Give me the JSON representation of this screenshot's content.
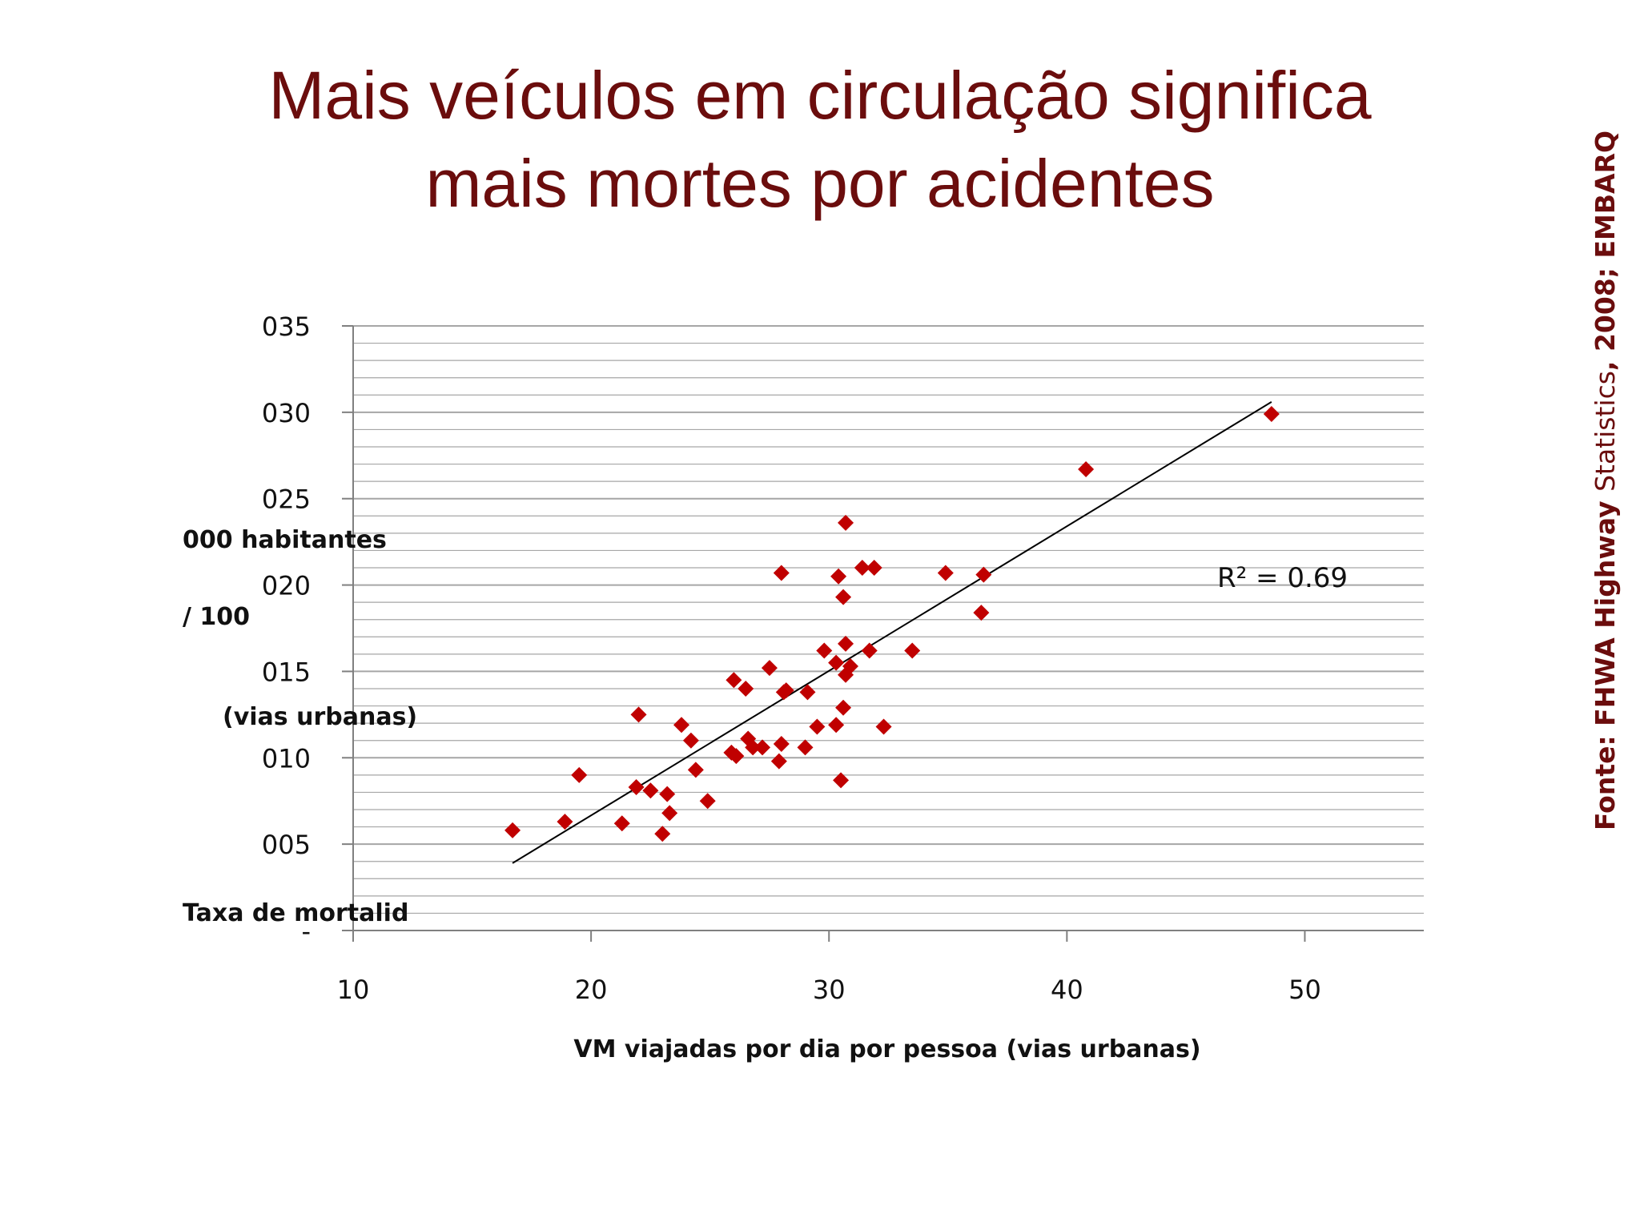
{
  "slide": {
    "title_line1": "Mais veículos em circulação significa",
    "title_line2": "mais mortes por acidentes",
    "source_bold": "Fonte: FHWA Highway ",
    "source_normal": "Statistics",
    "source_bold2": ", 2008; EMBARQ"
  },
  "colors": {
    "title": "#6b0d0d",
    "marker": "#c00000",
    "trendline": "#000000",
    "grid": "#a6a6a6"
  },
  "chart_data": {
    "type": "scatter",
    "title": "",
    "xlabel": "VM viajadas por dia por pessoa (vias urbanas)",
    "ylabel_lines": [
      "000 habitantes",
      "/ 100",
      "(vias urbanas)",
      "Taxa de mortalid"
    ],
    "xlim": [
      10,
      55
    ],
    "ylim": [
      0,
      35
    ],
    "x_ticks": [
      10,
      20,
      30,
      40,
      50
    ],
    "x_tick_labels": [
      "10",
      "20",
      "30",
      "40",
      "50"
    ],
    "y_ticks": [
      0,
      5,
      10,
      15,
      20,
      25,
      30,
      35
    ],
    "y_tick_labels": [
      "-",
      "005",
      "010",
      "015",
      "020",
      "025",
      "030",
      "035"
    ],
    "grid": true,
    "marker": "diamond",
    "points": [
      [
        16.7,
        5.8
      ],
      [
        18.9,
        6.3
      ],
      [
        19.5,
        9.0
      ],
      [
        21.3,
        6.2
      ],
      [
        21.9,
        8.3
      ],
      [
        22.0,
        12.5
      ],
      [
        22.5,
        8.1
      ],
      [
        23.0,
        5.6
      ],
      [
        23.2,
        7.9
      ],
      [
        23.3,
        6.8
      ],
      [
        23.8,
        11.9
      ],
      [
        24.2,
        11.0
      ],
      [
        24.4,
        9.3
      ],
      [
        24.9,
        7.5
      ],
      [
        25.9,
        10.3
      ],
      [
        26.1,
        10.1
      ],
      [
        26.0,
        14.5
      ],
      [
        26.5,
        14.0
      ],
      [
        26.6,
        11.1
      ],
      [
        26.8,
        10.6
      ],
      [
        27.2,
        10.6
      ],
      [
        27.5,
        15.2
      ],
      [
        27.9,
        9.8
      ],
      [
        28.0,
        10.8
      ],
      [
        28.0,
        20.7
      ],
      [
        28.1,
        13.8
      ],
      [
        28.2,
        13.9
      ],
      [
        29.0,
        10.6
      ],
      [
        29.1,
        13.8
      ],
      [
        29.5,
        11.8
      ],
      [
        29.8,
        16.2
      ],
      [
        30.3,
        15.5
      ],
      [
        30.4,
        20.5
      ],
      [
        30.3,
        11.9
      ],
      [
        30.5,
        8.7
      ],
      [
        30.6,
        19.3
      ],
      [
        30.6,
        12.9
      ],
      [
        30.7,
        14.8
      ],
      [
        30.7,
        16.6
      ],
      [
        30.7,
        23.6
      ],
      [
        30.9,
        15.3
      ],
      [
        31.4,
        21.0
      ],
      [
        31.7,
        16.2
      ],
      [
        31.9,
        21.0
      ],
      [
        32.3,
        11.8
      ],
      [
        33.5,
        16.2
      ],
      [
        34.9,
        20.7
      ],
      [
        36.4,
        18.4
      ],
      [
        36.5,
        20.6
      ],
      [
        40.8,
        26.7
      ],
      [
        48.6,
        29.9
      ]
    ],
    "trendline": {
      "x": [
        16.7,
        48.6
      ],
      "y": [
        3.9,
        30.6
      ]
    },
    "r_squared_label": "R² = 0.69"
  }
}
